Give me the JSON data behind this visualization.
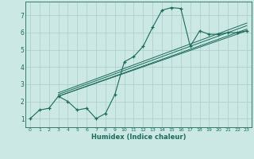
{
  "xlabel": "Humidex (Indice chaleur)",
  "bg_color": "#cce8e4",
  "grid_color": "#aaccca",
  "line_color": "#1a6b5a",
  "xlim": [
    -0.5,
    23.5
  ],
  "ylim": [
    0.5,
    7.8
  ],
  "xticks": [
    0,
    1,
    2,
    3,
    4,
    5,
    6,
    7,
    8,
    9,
    10,
    11,
    12,
    13,
    14,
    15,
    16,
    17,
    18,
    19,
    20,
    21,
    22,
    23
  ],
  "yticks": [
    1,
    2,
    3,
    4,
    5,
    6,
    7
  ],
  "main_x": [
    0,
    1,
    2,
    3,
    4,
    5,
    6,
    7,
    8,
    9,
    10,
    11,
    12,
    13,
    14,
    15,
    16,
    17,
    18,
    19,
    20,
    21,
    22,
    23
  ],
  "main_y": [
    1.0,
    1.5,
    1.6,
    2.3,
    2.0,
    1.5,
    1.6,
    1.0,
    1.3,
    2.4,
    4.3,
    4.6,
    5.2,
    6.3,
    7.3,
    7.45,
    7.4,
    5.2,
    6.1,
    5.9,
    5.9,
    6.0,
    6.0,
    6.1
  ],
  "reg_lines": [
    {
      "x": [
        3,
        23
      ],
      "y": [
        2.3,
        6.1
      ]
    },
    {
      "x": [
        3,
        23
      ],
      "y": [
        2.3,
        6.2
      ]
    },
    {
      "x": [
        3,
        23
      ],
      "y": [
        2.4,
        6.4
      ]
    },
    {
      "x": [
        3,
        23
      ],
      "y": [
        2.5,
        6.55
      ]
    }
  ]
}
